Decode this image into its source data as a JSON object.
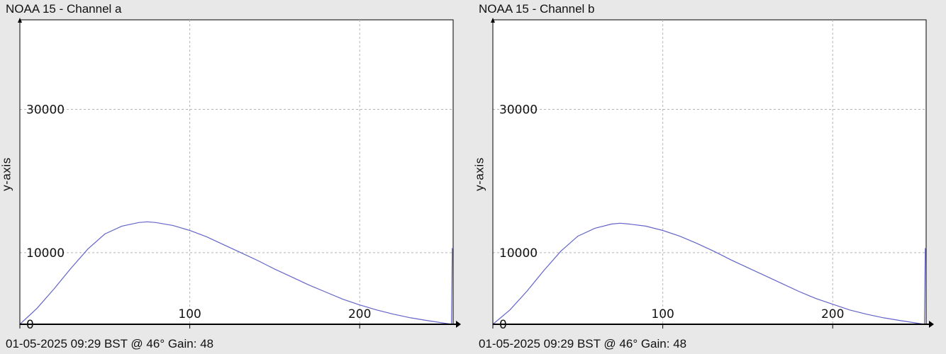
{
  "charts": [
    {
      "title": "NOAA 15 - Channel a",
      "footer": "01-05-2025 09:29 BST @ 46° Gain: 48",
      "ylabel": "y-axis"
    },
    {
      "title": "NOAA 15 - Channel b",
      "footer": "01-05-2025 09:29 BST @ 46° Gain: 48",
      "ylabel": "y-axis"
    }
  ],
  "colors": {
    "background": "#e8e8e8",
    "plot_bg": "#ffffff",
    "line": "#6464c8",
    "grid": "#b4b4b4",
    "axis": "#000000"
  },
  "chart_data": [
    {
      "type": "line",
      "title": "NOAA 15 - Channel a",
      "ylabel": "y-axis",
      "xlabel": "",
      "xlim": [
        0,
        255
      ],
      "ylim": [
        0,
        42500
      ],
      "grid": true,
      "x_ticks": [
        0,
        100,
        200
      ],
      "y_ticks": [
        0,
        10000,
        30000
      ],
      "x_tick_labels": [
        "0",
        "100",
        "200"
      ],
      "y_tick_labels": [
        "0",
        "10000",
        "30000"
      ],
      "series": [
        {
          "x": [
            0,
            10,
            20,
            30,
            40,
            50,
            60,
            70,
            75,
            80,
            90,
            100,
            110,
            120,
            130,
            140,
            150,
            160,
            170,
            180,
            190,
            200,
            210,
            220,
            230,
            240,
            254,
            254.5,
            255
          ],
          "y": [
            0,
            2200,
            4900,
            7800,
            10500,
            12600,
            13700,
            14200,
            14300,
            14200,
            13800,
            13100,
            12200,
            11100,
            10000,
            8900,
            7700,
            6600,
            5500,
            4500,
            3500,
            2700,
            2000,
            1400,
            900,
            500,
            0,
            10600,
            10600
          ]
        }
      ]
    },
    {
      "type": "line",
      "title": "NOAA 15 - Channel b",
      "ylabel": "y-axis",
      "xlabel": "",
      "xlim": [
        0,
        255
      ],
      "ylim": [
        0,
        42500
      ],
      "grid": true,
      "x_ticks": [
        0,
        100,
        200
      ],
      "y_ticks": [
        0,
        10000,
        30000
      ],
      "x_tick_labels": [
        "0",
        "100",
        "200"
      ],
      "y_tick_labels": [
        "0",
        "10000",
        "30000"
      ],
      "series": [
        {
          "x": [
            0,
            10,
            20,
            30,
            40,
            50,
            60,
            70,
            75,
            80,
            90,
            100,
            110,
            120,
            130,
            140,
            150,
            160,
            170,
            180,
            190,
            200,
            210,
            220,
            230,
            240,
            254,
            254.5,
            255
          ],
          "y": [
            0,
            2000,
            4600,
            7500,
            10200,
            12300,
            13400,
            14000,
            14100,
            14000,
            13700,
            13100,
            12300,
            11300,
            10200,
            9000,
            7900,
            6800,
            5700,
            4600,
            3600,
            2800,
            2000,
            1400,
            900,
            500,
            0,
            10600,
            10600
          ]
        }
      ]
    }
  ]
}
